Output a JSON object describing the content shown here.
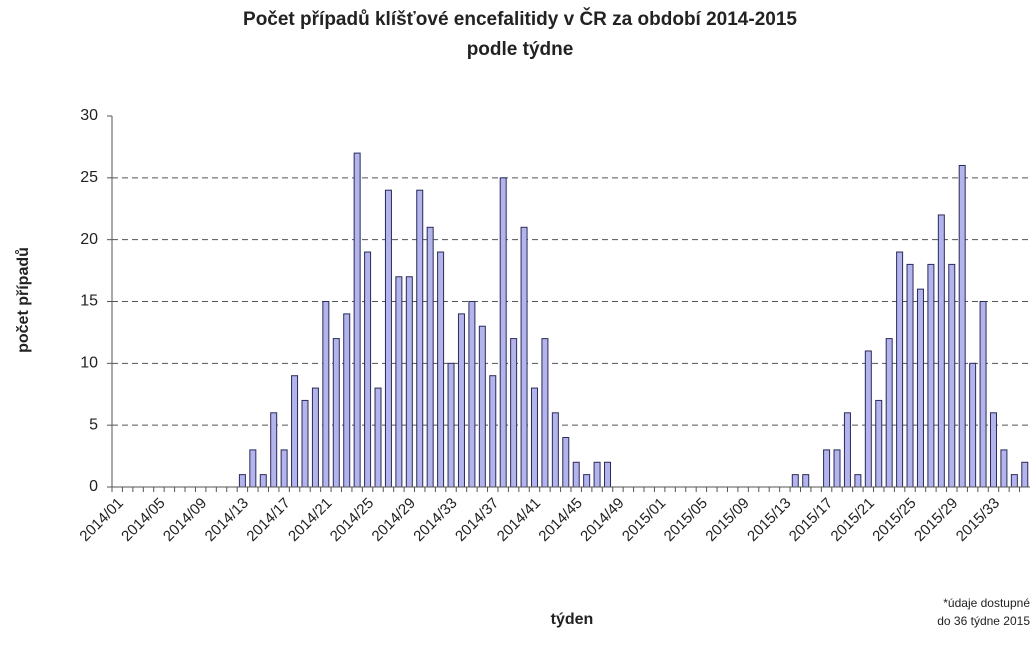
{
  "chart_data": {
    "type": "bar",
    "title": "Počet případů klíšťové encefalitidy v ČR za období 2014-2015",
    "subtitle": "podle týdne",
    "y_label": "počet případů",
    "x_label": "týden",
    "note": [
      "*údaje dostupné",
      "do 36 týdne 2015"
    ],
    "categories": [
      "2014/01",
      null,
      null,
      null,
      "2014/05",
      null,
      null,
      null,
      "2014/09",
      null,
      null,
      null,
      "2014/13",
      null,
      null,
      null,
      "2014/17",
      null,
      null,
      null,
      "2014/21",
      null,
      null,
      null,
      "2014/25",
      null,
      null,
      null,
      "2014/29",
      null,
      null,
      null,
      "2014/33",
      null,
      null,
      null,
      "2014/37",
      null,
      null,
      null,
      "2014/41",
      null,
      null,
      null,
      "2014/45",
      null,
      null,
      null,
      "2014/49",
      null,
      null,
      null,
      "2015/01",
      null,
      null,
      null,
      "2015/05",
      null,
      null,
      null,
      "2015/09",
      null,
      null,
      null,
      "2015/13",
      null,
      null,
      null,
      "2015/17",
      null,
      null,
      null,
      "2015/21",
      null,
      null,
      null,
      "2015/25",
      null,
      null,
      null,
      "2015/29",
      null,
      null,
      null,
      "2015/33",
      null,
      null,
      null
    ],
    "values": [
      0,
      0,
      0,
      0,
      0,
      0,
      0,
      0,
      0,
      0,
      0,
      0,
      1,
      3,
      1,
      6,
      3,
      9,
      7,
      8,
      15,
      12,
      14,
      27,
      19,
      8,
      24,
      17,
      17,
      24,
      21,
      19,
      10,
      14,
      15,
      13,
      9,
      25,
      12,
      21,
      8,
      12,
      6,
      4,
      2,
      1,
      2,
      2,
      0,
      0,
      0,
      0,
      0,
      0,
      0,
      0,
      0,
      0,
      0,
      0,
      0,
      0,
      0,
      0,
      0,
      1,
      1,
      0,
      3,
      3,
      6,
      1,
      11,
      7,
      12,
      19,
      18,
      16,
      18,
      22,
      18,
      26,
      10,
      15,
      6,
      3,
      1,
      2
    ],
    "color": "#b4b4ec",
    "edge_color": "#2a2a5a",
    "ylim": [
      0,
      30
    ],
    "yticks": [
      0,
      5,
      10,
      15,
      20,
      25,
      30
    ],
    "grid": true
  }
}
